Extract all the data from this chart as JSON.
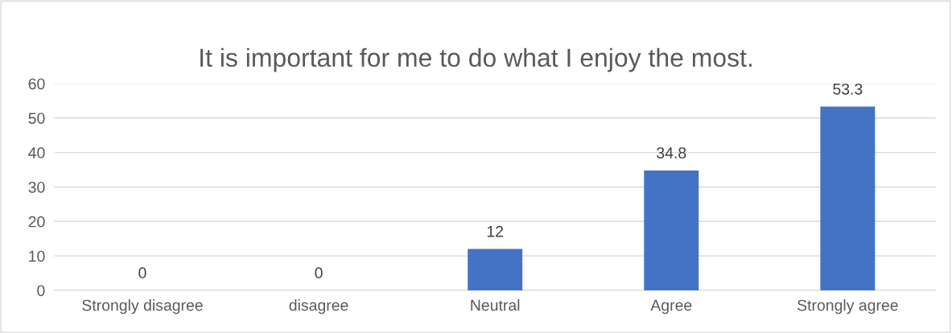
{
  "chart_data": {
    "type": "bar",
    "title": "It is important for me to do what I enjoy the most.",
    "categories": [
      "Strongly disagree",
      "disagree",
      "Neutral",
      "Agree",
      "Strongly agree"
    ],
    "values": [
      0,
      0,
      12,
      34.8,
      53.3
    ],
    "color": "#4472c4",
    "ylim": [
      0,
      60
    ],
    "yticks": [
      0,
      10,
      20,
      30,
      40,
      50,
      60
    ],
    "grid": "y",
    "data_labels": true
  }
}
